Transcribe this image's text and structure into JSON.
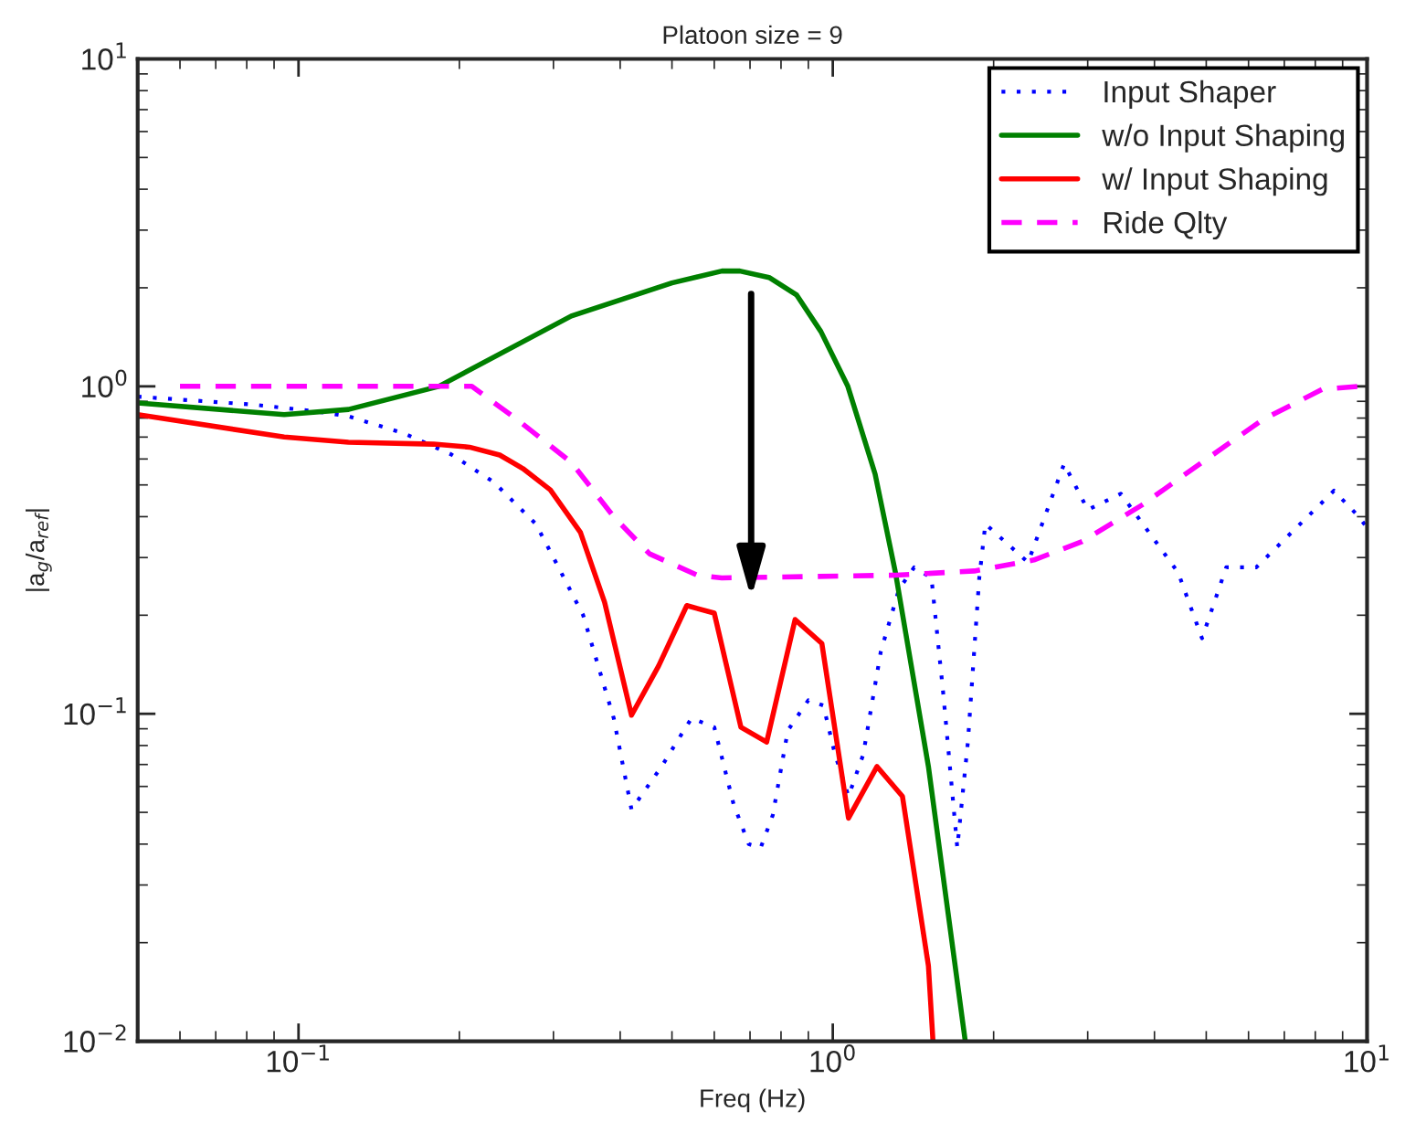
{
  "chart_data": {
    "type": "line",
    "title": "Platoon size = 9",
    "xlabel": "Freq (Hz)",
    "ylabel": "|a$_{g}$/a$_{ref}$|",
    "log": "xy",
    "xlim": [
      0.05,
      10
    ],
    "ylim": [
      0.01,
      10
    ],
    "xticks": [
      {
        "value": 0.1,
        "label": "10$^{−1}$"
      },
      {
        "value": 1,
        "label": "10$^{0}$"
      },
      {
        "value": 10,
        "label": "10$^{1}$"
      }
    ],
    "yticks": [
      {
        "value": 0.01,
        "label": "10$^{−2}$"
      },
      {
        "value": 0.1,
        "label": "10$^{−1}$"
      },
      {
        "value": 1,
        "label": "10$^{0}$"
      },
      {
        "value": 10,
        "label": "10$^{1}$"
      }
    ],
    "grid": false,
    "legend": "top right",
    "series": [
      {
        "name": "Input Shaper",
        "color": "#0000ff",
        "line_style": "dotted",
        "x": [
          0.05,
          0.082,
          0.107,
          0.124,
          0.157,
          0.193,
          0.232,
          0.278,
          0.3,
          0.341,
          0.389,
          0.42,
          0.478,
          0.544,
          0.6,
          0.652,
          0.696,
          0.733,
          0.772,
          0.824,
          0.9,
          0.96,
          1.01,
          1.07,
          1.14,
          1.23,
          1.33,
          1.42,
          1.53,
          1.61,
          1.71,
          1.79,
          1.88,
          1.93,
          2.32,
          2.71,
          3.0,
          3.46,
          4.43,
          4.91,
          5.45,
          5.74,
          6.2,
          8.67,
          9.65,
          10
        ],
        "values": [
          0.93,
          0.88,
          0.84,
          0.81,
          0.72,
          0.62,
          0.51,
          0.38,
          0.3,
          0.2,
          0.097,
          0.051,
          0.069,
          0.097,
          0.091,
          0.053,
          0.04,
          0.039,
          0.049,
          0.089,
          0.11,
          0.106,
          0.075,
          0.056,
          0.075,
          0.155,
          0.24,
          0.28,
          0.26,
          0.115,
          0.039,
          0.082,
          0.26,
          0.38,
          0.29,
          0.58,
          0.42,
          0.47,
          0.27,
          0.17,
          0.28,
          0.28,
          0.28,
          0.48,
          0.4,
          0.37
        ]
      },
      {
        "name": "w/o Input Shaping",
        "color": "#008000",
        "line_style": "solid",
        "x": [
          0.05,
          0.094,
          0.124,
          0.183,
          0.324,
          0.5,
          0.62,
          0.67,
          0.76,
          0.856,
          0.95,
          1.067,
          1.2,
          1.31,
          1.51,
          1.77
        ],
        "values": [
          0.89,
          0.82,
          0.85,
          1.0,
          1.64,
          2.07,
          2.25,
          2.25,
          2.15,
          1.9,
          1.47,
          1.0,
          0.54,
          0.27,
          0.069,
          0.01
        ]
      },
      {
        "name": "w/ Input Shaping",
        "color": "#ff0000",
        "line_style": "solid",
        "x": [
          0.05,
          0.094,
          0.124,
          0.179,
          0.209,
          0.238,
          0.263,
          0.296,
          0.337,
          0.374,
          0.42,
          0.472,
          0.533,
          0.6,
          0.673,
          0.752,
          0.85,
          0.954,
          1.07,
          1.21,
          1.35,
          1.51,
          1.54
        ],
        "values": [
          0.82,
          0.7,
          0.675,
          0.666,
          0.652,
          0.617,
          0.561,
          0.483,
          0.358,
          0.219,
          0.099,
          0.14,
          0.214,
          0.203,
          0.091,
          0.082,
          0.194,
          0.164,
          0.048,
          0.069,
          0.056,
          0.017,
          0.01
        ]
      },
      {
        "name": "Ride Qlty",
        "color": "#ff00ff",
        "line_style": "dashed",
        "x": [
          0.06,
          0.211,
          0.257,
          0.324,
          0.389,
          0.454,
          0.558,
          0.62,
          1.31,
          1.84,
          2.38,
          2.93,
          3.79,
          4.91,
          6.37,
          8.25,
          9.65,
          10
        ],
        "values": [
          1.0,
          1.0,
          0.79,
          0.586,
          0.4,
          0.308,
          0.265,
          0.26,
          0.265,
          0.273,
          0.295,
          0.336,
          0.434,
          0.586,
          0.79,
          0.98,
          1.0,
          1.0
        ]
      }
    ]
  }
}
